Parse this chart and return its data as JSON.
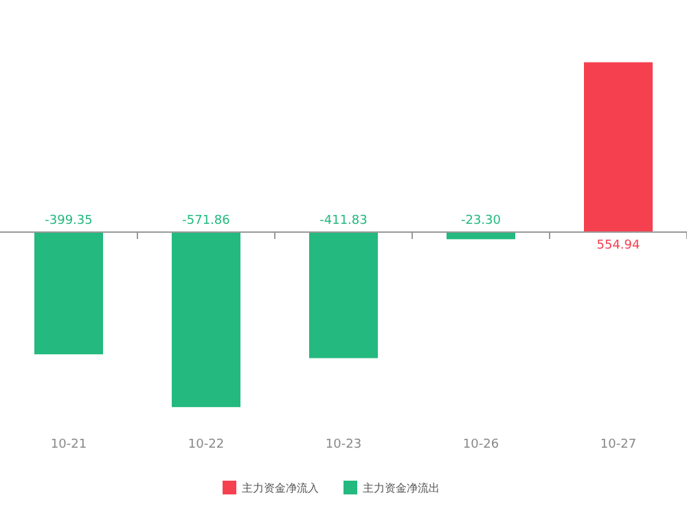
{
  "chart_data": {
    "type": "bar",
    "categories": [
      "10-21",
      "10-22",
      "10-23",
      "10-26",
      "10-27"
    ],
    "series": [
      {
        "name": "主力资金净流入",
        "color": "#f5404f",
        "values": [
          null,
          null,
          null,
          null,
          554.94
        ],
        "value_labels": [
          null,
          null,
          null,
          null,
          "554.94"
        ]
      },
      {
        "name": "主力资金净流出",
        "color": "#23b97f",
        "values": [
          -399.35,
          -571.86,
          -411.83,
          -23.3,
          null
        ],
        "value_labels": [
          "-399.35",
          "-571.86",
          "-411.83",
          "-23.30",
          null
        ]
      }
    ],
    "stacked": true,
    "legend": "bottom"
  }
}
